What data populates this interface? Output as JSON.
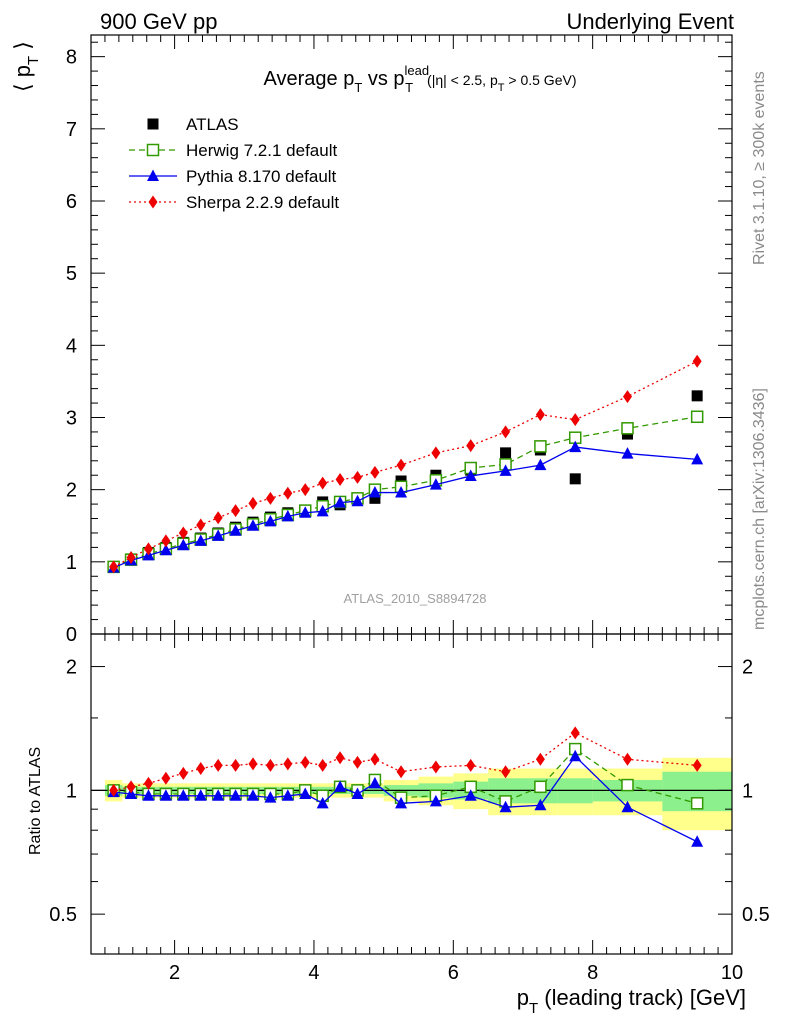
{
  "header": {
    "left": "900 GeV pp",
    "right": "Underlying Event"
  },
  "side_labels": {
    "rivet": "Rivet 3.1.10, ≥ 300k events",
    "mcplots": "mcplots.cern.ch [arXiv:1306.3436]"
  },
  "watermark": "ATLAS_2010_S8894728",
  "chart_data": [
    {
      "type": "line",
      "title": "Average p_T vs p_T^lead (|η| < 2.5, p_T > 0.5 GeV)",
      "ylabel": "⟨ p_T ⟩",
      "xlabel": "p_T (leading track) [GeV]",
      "xlim": [
        0.8,
        10.0
      ],
      "ylim": [
        0,
        8.3
      ],
      "y_ticks": [
        0,
        1,
        2,
        3,
        4,
        5,
        6,
        7,
        8
      ],
      "x_ticks": [
        2,
        4,
        6,
        8,
        10
      ],
      "legend_position": "top-left",
      "colors": {
        "atlas": "#000000",
        "herwig": "#339900",
        "pythia": "#0000ee",
        "sherpa": "#ee0000"
      },
      "x": [
        1.125,
        1.375,
        1.625,
        1.875,
        2.125,
        2.375,
        2.625,
        2.875,
        3.125,
        3.375,
        3.625,
        3.875,
        4.125,
        4.375,
        4.625,
        4.875,
        5.25,
        5.75,
        6.25,
        6.75,
        7.25,
        7.75,
        8.5,
        9.5
      ],
      "series": [
        {
          "name": "ATLAS",
          "marker": "filled-square",
          "values": [
            0.93,
            1.04,
            1.13,
            1.2,
            1.27,
            1.33,
            1.4,
            1.48,
            1.55,
            1.62,
            1.68,
            1.71,
            1.83,
            1.79,
            1.87,
            1.88,
            2.12,
            2.2,
            2.27,
            2.51,
            2.55,
            2.15,
            2.77,
            3.3
          ]
        },
        {
          "name": "Herwig 7.2.1 default",
          "marker": "open-square",
          "values": [
            0.93,
            1.03,
            1.11,
            1.18,
            1.25,
            1.31,
            1.38,
            1.45,
            1.52,
            1.59,
            1.65,
            1.71,
            1.77,
            1.83,
            1.88,
            2.0,
            2.04,
            2.13,
            2.3,
            2.35,
            2.6,
            2.72,
            2.85,
            3.01
          ]
        },
        {
          "name": "Pythia 8.170 default",
          "marker": "filled-triangle",
          "values": [
            0.92,
            1.02,
            1.09,
            1.16,
            1.23,
            1.29,
            1.36,
            1.43,
            1.5,
            1.56,
            1.63,
            1.68,
            1.7,
            1.82,
            1.84,
            1.96,
            1.96,
            2.07,
            2.19,
            2.26,
            2.34,
            2.59,
            2.5,
            2.42
          ]
        },
        {
          "name": "Sherpa 2.2.9 default",
          "marker": "filled-diamond",
          "values": [
            0.93,
            1.06,
            1.18,
            1.29,
            1.4,
            1.51,
            1.61,
            1.71,
            1.81,
            1.88,
            1.95,
            2.0,
            2.09,
            2.14,
            2.17,
            2.24,
            2.34,
            2.51,
            2.61,
            2.8,
            3.04,
            2.97,
            3.29,
            3.78
          ]
        }
      ]
    },
    {
      "type": "line",
      "ylabel": "Ratio to ATLAS",
      "xlabel": "p_T (leading track) [GeV]",
      "xlim": [
        0.8,
        10.0
      ],
      "ylim": [
        0.4,
        2.4
      ],
      "y_scale": "log",
      "y_ticks": [
        0.5,
        1,
        2
      ],
      "x": [
        1.125,
        1.375,
        1.625,
        1.875,
        2.125,
        2.375,
        2.625,
        2.875,
        3.125,
        3.375,
        3.625,
        3.875,
        4.125,
        4.375,
        4.625,
        4.875,
        5.25,
        5.75,
        6.25,
        6.75,
        7.25,
        7.75,
        8.5,
        9.5
      ],
      "uncertainty_band": {
        "edges": [
          1.0,
          1.25,
          1.5,
          1.75,
          2.0,
          2.25,
          2.5,
          2.75,
          3.0,
          3.25,
          3.5,
          3.75,
          4.0,
          4.25,
          4.5,
          4.75,
          5.0,
          5.5,
          6.0,
          6.5,
          7.0,
          7.5,
          8.0,
          9.0,
          10.0
        ],
        "stat_half_width": [
          0.03,
          0.02,
          0.02,
          0.02,
          0.02,
          0.02,
          0.02,
          0.02,
          0.02,
          0.02,
          0.02,
          0.02,
          0.02,
          0.02,
          0.02,
          0.02,
          0.03,
          0.04,
          0.05,
          0.07,
          0.07,
          0.07,
          0.06,
          0.11
        ],
        "total_half_width": [
          0.06,
          0.04,
          0.04,
          0.04,
          0.04,
          0.04,
          0.04,
          0.04,
          0.04,
          0.04,
          0.04,
          0.04,
          0.04,
          0.04,
          0.04,
          0.04,
          0.06,
          0.08,
          0.1,
          0.13,
          0.13,
          0.13,
          0.13,
          0.2
        ]
      },
      "series": [
        {
          "name": "Herwig 7.2.1 default",
          "values": [
            1.0,
            0.99,
            0.98,
            0.98,
            0.98,
            0.98,
            0.98,
            0.98,
            0.98,
            0.98,
            0.98,
            1.0,
            0.97,
            1.02,
            1.0,
            1.06,
            0.96,
            0.97,
            1.02,
            0.94,
            1.02,
            1.26,
            1.03,
            0.93
          ]
        },
        {
          "name": "Pythia 8.170 default",
          "values": [
            0.99,
            0.98,
            0.97,
            0.97,
            0.97,
            0.97,
            0.97,
            0.97,
            0.97,
            0.96,
            0.97,
            0.98,
            0.93,
            1.02,
            0.98,
            1.04,
            0.93,
            0.94,
            0.97,
            0.91,
            0.92,
            1.21,
            0.91,
            0.75
          ]
        },
        {
          "name": "Sherpa 2.2.9 default",
          "values": [
            1.0,
            1.02,
            1.04,
            1.07,
            1.1,
            1.13,
            1.15,
            1.15,
            1.16,
            1.15,
            1.16,
            1.17,
            1.15,
            1.2,
            1.17,
            1.19,
            1.11,
            1.14,
            1.15,
            1.11,
            1.19,
            1.38,
            1.19,
            1.15
          ]
        }
      ]
    }
  ]
}
